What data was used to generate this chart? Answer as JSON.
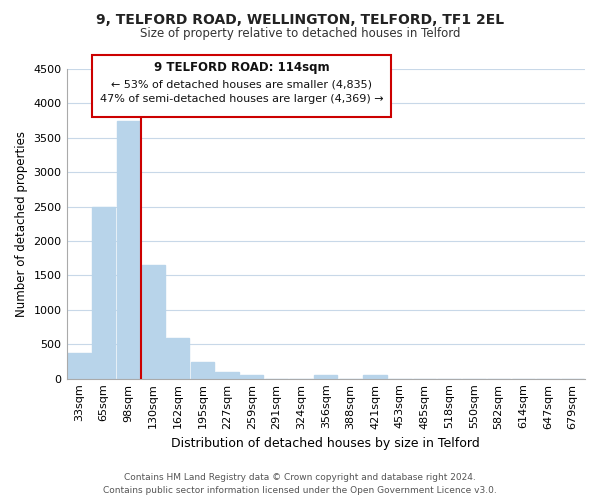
{
  "title": "9, TELFORD ROAD, WELLINGTON, TELFORD, TF1 2EL",
  "subtitle": "Size of property relative to detached houses in Telford",
  "xlabel": "Distribution of detached houses by size in Telford",
  "ylabel": "Number of detached properties",
  "bar_labels": [
    "33sqm",
    "65sqm",
    "98sqm",
    "130sqm",
    "162sqm",
    "195sqm",
    "227sqm",
    "259sqm",
    "291sqm",
    "324sqm",
    "356sqm",
    "388sqm",
    "421sqm",
    "453sqm",
    "485sqm",
    "518sqm",
    "550sqm",
    "582sqm",
    "614sqm",
    "647sqm",
    "679sqm"
  ],
  "bar_values": [
    380,
    2500,
    3750,
    1650,
    590,
    240,
    100,
    55,
    0,
    0,
    55,
    0,
    55,
    0,
    0,
    0,
    0,
    0,
    0,
    0,
    0
  ],
  "bar_color": "#b8d4ea",
  "vline_x": 2.5,
  "vline_color": "#cc0000",
  "ylim": [
    0,
    4500
  ],
  "yticks": [
    0,
    500,
    1000,
    1500,
    2000,
    2500,
    3000,
    3500,
    4000,
    4500
  ],
  "annotation_line1": "9 TELFORD ROAD: 114sqm",
  "annotation_line2": "← 53% of detached houses are smaller (4,835)",
  "annotation_line3": "47% of semi-detached houses are larger (4,369) →",
  "annotation_box_color": "#ffffff",
  "annotation_box_edge": "#cc0000",
  "footer_line1": "Contains HM Land Registry data © Crown copyright and database right 2024.",
  "footer_line2": "Contains public sector information licensed under the Open Government Licence v3.0.",
  "bg_color": "#ffffff",
  "grid_color": "#c8d8e8",
  "fig_width": 6.0,
  "fig_height": 5.0,
  "dpi": 100
}
